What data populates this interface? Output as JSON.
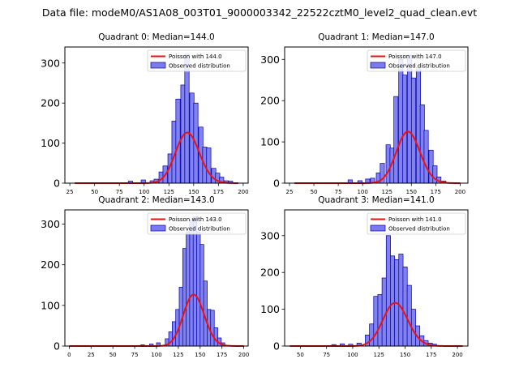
{
  "figure": {
    "title": "Data file: modeM0/AS1A08_003T01_9000003342_22522cztM0_level2_quad_clean.evt"
  },
  "colors": {
    "bar_fill": "#7b7bee",
    "bar_edge": "#0000aa",
    "curve": "#ee1111",
    "axis": "#000000"
  },
  "chart_data": [
    {
      "type": "bar",
      "title": "Quadrant 0: Median=144.0",
      "legend": {
        "poisson": "Poisson with 144.0",
        "observed": "Observed distribution",
        "placement": "top-right"
      },
      "xlim": [
        20,
        205
      ],
      "ylim": [
        0,
        340
      ],
      "xticks": [
        25,
        50,
        75,
        100,
        125,
        150,
        175,
        200
      ],
      "xtick_labels": [
        "25",
        "50",
        "75",
        "100",
        "125",
        "150",
        "175",
        "200"
      ],
      "yticks": [
        0,
        100,
        200,
        300
      ],
      "ytick_labels": [
        "0",
        "100",
        "200",
        "300"
      ],
      "bin_width": 4.4,
      "bin_starts": [
        84,
        97,
        106,
        110,
        115,
        119,
        124,
        128,
        132,
        137,
        141,
        146,
        150,
        155,
        159,
        163,
        168,
        172,
        176,
        181,
        185
      ],
      "counts": [
        5,
        8,
        6,
        10,
        28,
        43,
        73,
        155,
        210,
        245,
        322,
        225,
        200,
        140,
        90,
        88,
        37,
        25,
        15,
        6,
        5
      ],
      "poisson_mean": 144.0,
      "poisson_scale": 3800,
      "curve_range": [
        30,
        195
      ]
    },
    {
      "type": "bar",
      "title": "Quadrant 1: Median=147.0",
      "legend": {
        "poisson": "Poisson with 147.0",
        "observed": "Observed distribution",
        "placement": "top-right"
      },
      "xlim": [
        20,
        208
      ],
      "ylim": [
        0,
        330
      ],
      "xticks": [
        25,
        50,
        75,
        100,
        125,
        150,
        175,
        200
      ],
      "xtick_labels": [
        "25",
        "50",
        "75",
        "100",
        "125",
        "150",
        "175",
        "200"
      ],
      "yticks": [
        0,
        100,
        200,
        300
      ],
      "ytick_labels": [
        "0",
        "100",
        "200",
        "300"
      ],
      "bin_width": 4.4,
      "bin_starts": [
        85,
        95,
        103,
        108,
        114,
        118,
        124,
        128,
        132,
        137,
        141,
        146,
        150,
        155,
        159,
        163,
        168,
        172,
        176,
        181
      ],
      "counts": [
        8,
        6,
        10,
        12,
        25,
        48,
        93,
        85,
        210,
        300,
        262,
        310,
        255,
        280,
        190,
        128,
        80,
        42,
        15,
        5
      ],
      "poisson_mean": 147.0,
      "poisson_scale": 3800,
      "curve_range": [
        30,
        200
      ]
    },
    {
      "type": "bar",
      "title": "Quadrant 2: Median=143.0",
      "legend": {
        "poisson": "Poisson with 143.0",
        "observed": "Observed distribution",
        "placement": "top-right"
      },
      "xlim": [
        -5,
        205
      ],
      "ylim": [
        0,
        335
      ],
      "xticks": [
        0,
        25,
        50,
        75,
        100,
        125,
        150,
        175,
        200
      ],
      "xtick_labels": [
        "0",
        "25",
        "50",
        "75",
        "100",
        "125",
        "150",
        "175",
        "200"
      ],
      "yticks": [
        0,
        100,
        200,
        300
      ],
      "ytick_labels": [
        "0",
        "100",
        "200",
        "300"
      ],
      "bin_width": 4.2,
      "bin_starts": [
        82,
        92,
        100,
        110,
        114,
        118,
        122,
        126,
        130,
        134,
        138,
        142,
        146,
        150,
        154,
        158,
        162,
        166,
        170,
        174
      ],
      "counts": [
        3,
        5,
        8,
        18,
        35,
        60,
        90,
        145,
        240,
        280,
        310,
        318,
        280,
        250,
        160,
        90,
        88,
        45,
        20,
        8
      ],
      "poisson_mean": 143.0,
      "poisson_scale": 3800,
      "curve_range": [
        0,
        200
      ]
    },
    {
      "type": "bar",
      "title": "Quadrant 3: Median=141.0",
      "legend": {
        "poisson": "Poisson with 141.0",
        "observed": "Observed distribution",
        "placement": "top-right"
      },
      "xlim": [
        35,
        210
      ],
      "ylim": [
        0,
        370
      ],
      "xticks": [
        50,
        75,
        100,
        125,
        150,
        175,
        200
      ],
      "xtick_labels": [
        "50",
        "75",
        "100",
        "125",
        "150",
        "175",
        "200"
      ],
      "yticks": [
        0,
        100,
        200,
        300
      ],
      "ytick_labels": [
        "0",
        "100",
        "200",
        "300"
      ],
      "bin_width": 4.1,
      "bin_starts": [
        80,
        88,
        96,
        104,
        112,
        116,
        120,
        124,
        128,
        132,
        136,
        140,
        144,
        148,
        152,
        156,
        160,
        164,
        168,
        172,
        176
      ],
      "counts": [
        4,
        6,
        5,
        8,
        30,
        60,
        135,
        140,
        185,
        300,
        245,
        235,
        250,
        215,
        165,
        100,
        55,
        28,
        15,
        8,
        5
      ],
      "poisson_mean": 141.0,
      "poisson_scale": 3500,
      "curve_range": [
        40,
        205
      ]
    }
  ]
}
